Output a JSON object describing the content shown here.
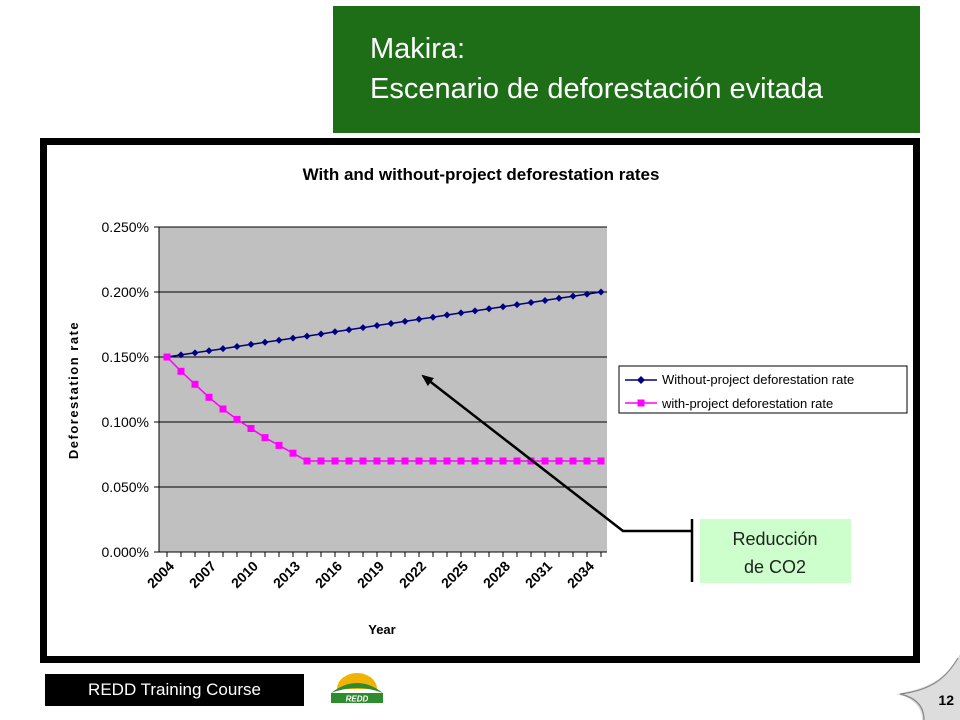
{
  "slide": {
    "title_line_1": "Makira:",
    "title_line_2": "Escenario de deforestación evitada",
    "footer_label": "REDD Training Course",
    "logo_text": "REDD",
    "page_number": "12"
  },
  "callout": {
    "line_1": "Reducción",
    "line_2": "de CO2",
    "background": "#ccffcc"
  },
  "colors": {
    "banner": "#1e6e18",
    "plot_area": "#c0c0c0",
    "without_series": "#000080",
    "with_series": "#ff00ff"
  },
  "chart_data": {
    "type": "line",
    "title": "With and without-project deforestation rates",
    "xlabel": "Year",
    "ylabel": "Deforestation rate",
    "ylim": [
      0,
      0.0025
    ],
    "y_ticks": [
      "0.000%",
      "0.050%",
      "0.100%",
      "0.150%",
      "0.200%",
      "0.250%"
    ],
    "x_tick_labels": [
      "2004",
      "2007",
      "2010",
      "2013",
      "2016",
      "2019",
      "2022",
      "2025",
      "2028",
      "2031",
      "2034"
    ],
    "x": [
      2004,
      2005,
      2006,
      2007,
      2008,
      2009,
      2010,
      2011,
      2012,
      2013,
      2014,
      2015,
      2016,
      2017,
      2018,
      2019,
      2020,
      2021,
      2022,
      2023,
      2024,
      2025,
      2026,
      2027,
      2028,
      2029,
      2030,
      2031,
      2032,
      2033,
      2034,
      2035
    ],
    "grid": "horizontal",
    "legend_position": "right",
    "series": [
      {
        "name": "Without-project deforestation rate",
        "marker": "diamond",
        "values": [
          0.0015,
          0.001516,
          0.001532,
          0.001548,
          0.001564,
          0.001581,
          0.001597,
          0.001613,
          0.001629,
          0.001645,
          0.001661,
          0.001677,
          0.001694,
          0.00171,
          0.001726,
          0.001742,
          0.001758,
          0.001774,
          0.00179,
          0.001806,
          0.001823,
          0.001839,
          0.001855,
          0.001871,
          0.001887,
          0.001903,
          0.001919,
          0.001935,
          0.001952,
          0.001968,
          0.001984,
          0.002
        ]
      },
      {
        "name": "with-project deforestation rate",
        "marker": "square",
        "values": [
          0.0015,
          0.00139,
          0.00129,
          0.00119,
          0.0011,
          0.00102,
          0.00095,
          0.00088,
          0.00082,
          0.00076,
          0.0007,
          0.0007,
          0.0007,
          0.0007,
          0.0007,
          0.0007,
          0.0007,
          0.0007,
          0.0007,
          0.0007,
          0.0007,
          0.0007,
          0.0007,
          0.0007,
          0.0007,
          0.0007,
          0.0007,
          0.0007,
          0.0007,
          0.0007,
          0.0007,
          0.0007
        ]
      }
    ]
  }
}
